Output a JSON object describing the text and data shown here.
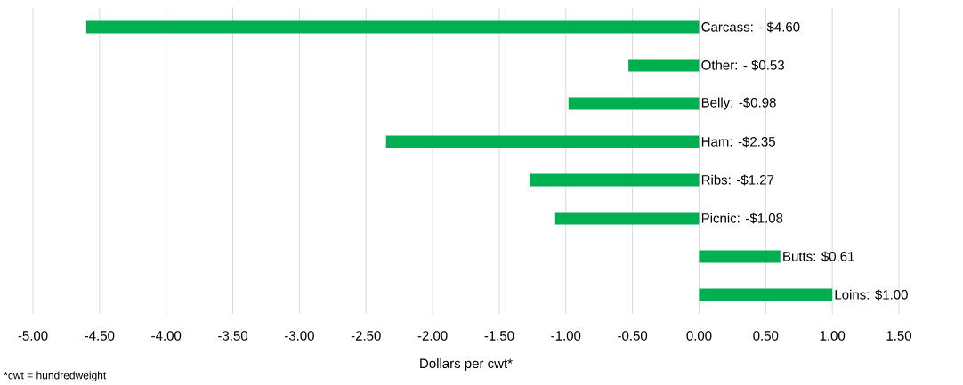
{
  "chart_data": {
    "type": "bar",
    "orientation": "horizontal",
    "xlabel": "Dollars per cwt*",
    "categories": [
      null,
      null,
      null,
      null,
      null,
      null,
      null,
      null
    ],
    "values": [
      -4.6,
      -0.53,
      -0.98,
      -2.35,
      -1.27,
      -1.08,
      0.61,
      1.0
    ],
    "value_labels": [
      "Carcass: - $4.60",
      "Other: - $0.53",
      "Belly: -$0.98",
      "Ham: -$2.35",
      "Ribs: -$1.27",
      "Picnic: -$1.08",
      "Butts: $0.61",
      "Loins: $1.00"
    ],
    "color": "#00b050",
    "xlim": [
      -5,
      1.5
    ],
    "xticks": [
      {
        "value": -5,
        "label": "-5.00"
      },
      {
        "value": -4.5,
        "label": "-4.50"
      },
      {
        "value": -4,
        "label": "-4.00"
      },
      {
        "value": -3.5,
        "label": "-3.50"
      },
      {
        "value": -3,
        "label": "-3.00"
      },
      {
        "value": -2.5,
        "label": "-2.50"
      },
      {
        "value": -2,
        "label": "-2.00"
      },
      {
        "value": -1.5,
        "label": "-1.50"
      },
      {
        "value": -1,
        "label": "-1.00"
      },
      {
        "value": -0.5,
        "label": "-0.50"
      },
      {
        "value": 0,
        "label": "0.00"
      },
      {
        "value": 0.5,
        "label": "0.50"
      },
      {
        "value": 1,
        "label": "1.00"
      },
      {
        "value": 1.5,
        "label": "1.50"
      }
    ],
    "grid": "x",
    "tick_labels": "x",
    "annotations": [
      "*cwt = hundredweight"
    ]
  }
}
